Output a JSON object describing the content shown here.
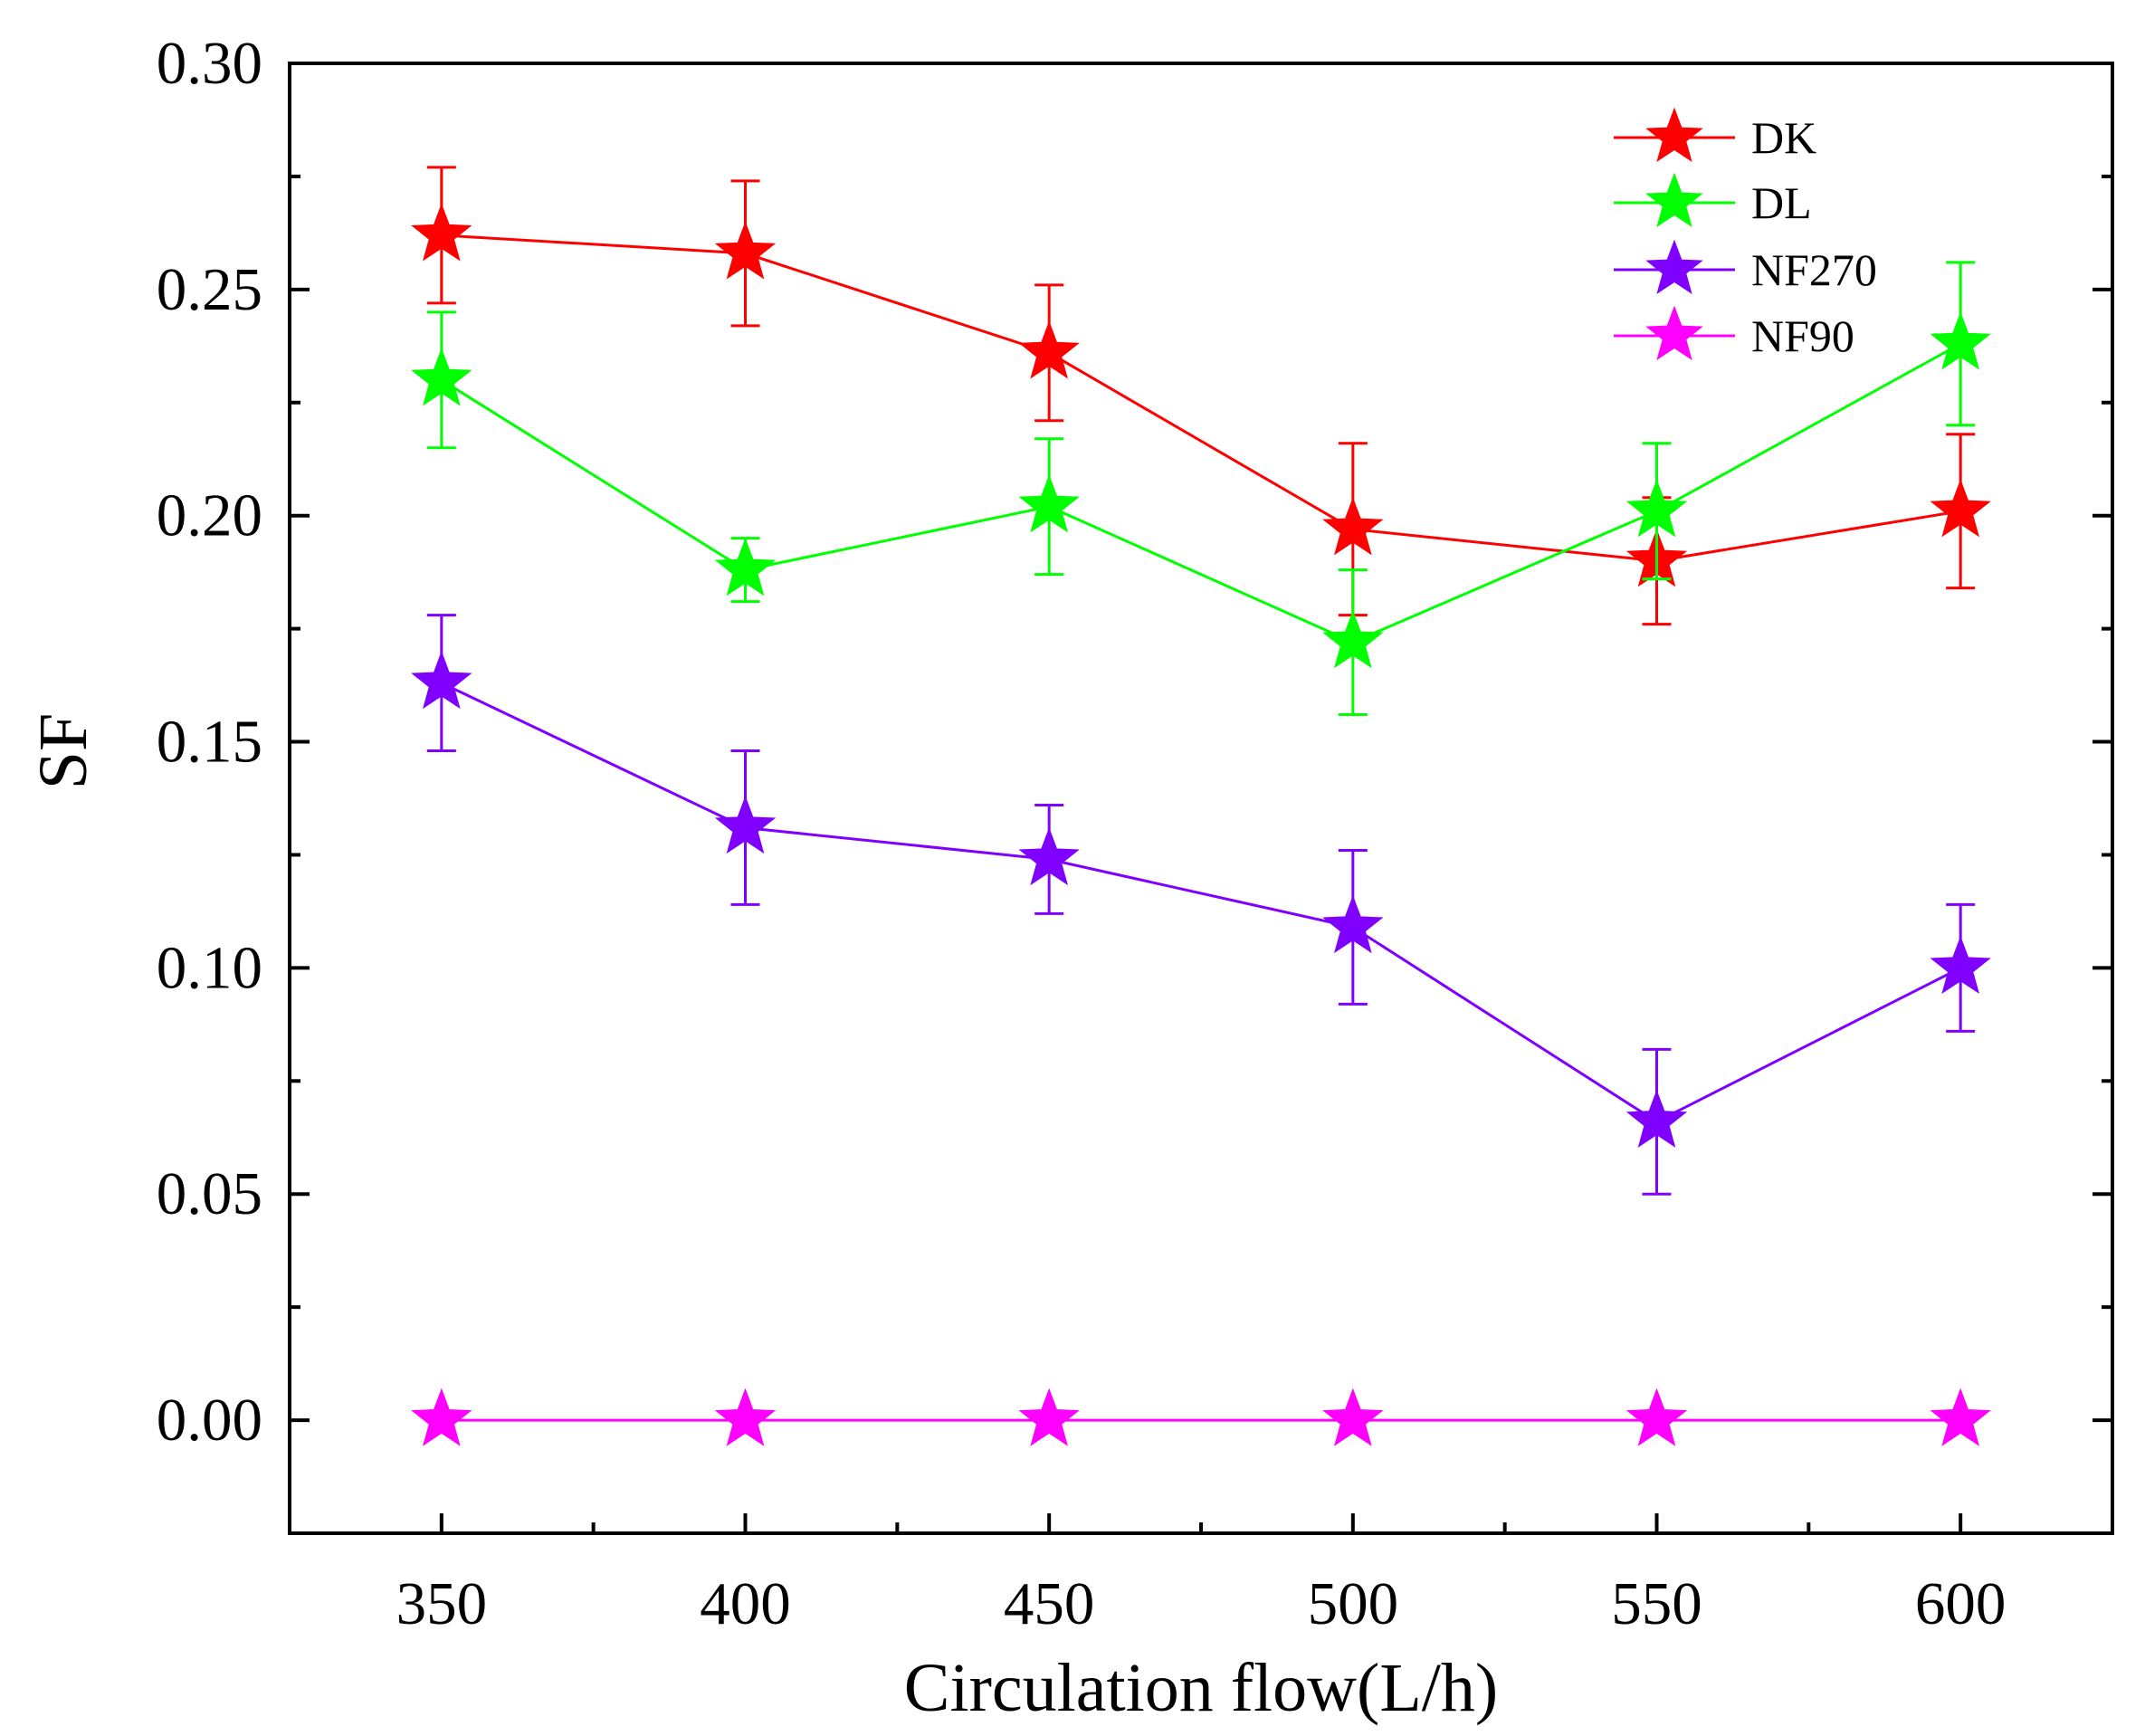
{
  "chart_data": {
    "type": "line",
    "title": "",
    "xlabel": "Circulation flow(L/h)",
    "ylabel": "SF",
    "x": [
      350,
      400,
      450,
      500,
      550,
      600
    ],
    "x_ticks": [
      "350",
      "400",
      "450",
      "500",
      "550",
      "600"
    ],
    "y_ticks": [
      "0.00",
      "0.05",
      "0.10",
      "0.15",
      "0.20",
      "0.25",
      "0.30"
    ],
    "xlim": [
      325,
      625
    ],
    "ylim": [
      -0.025,
      0.3
    ],
    "grid": false,
    "legend_position": "top-right",
    "series": [
      {
        "name": "DK",
        "color": "#ff0000",
        "values": [
          0.262,
          0.258,
          0.236,
          0.197,
          0.19,
          0.201
        ],
        "errors": [
          0.015,
          0.016,
          0.015,
          0.019,
          0.014,
          0.017
        ]
      },
      {
        "name": "DL",
        "color": "#00ff00",
        "values": [
          0.23,
          0.188,
          0.202,
          0.172,
          0.201,
          0.238
        ],
        "errors": [
          0.015,
          0.007,
          0.015,
          0.016,
          0.015,
          0.018
        ]
      },
      {
        "name": "NF270",
        "color": "#8000ff",
        "values": [
          0.163,
          0.131,
          0.124,
          0.109,
          0.066,
          0.1
        ],
        "errors": [
          0.015,
          0.017,
          0.012,
          0.017,
          0.016,
          0.014
        ]
      },
      {
        "name": "NF90",
        "color": "#ff00ff",
        "values": [
          0.0,
          0.0,
          0.0,
          0.0,
          0.0,
          0.0
        ],
        "errors": [
          0,
          0,
          0,
          0,
          0,
          0
        ]
      }
    ]
  }
}
